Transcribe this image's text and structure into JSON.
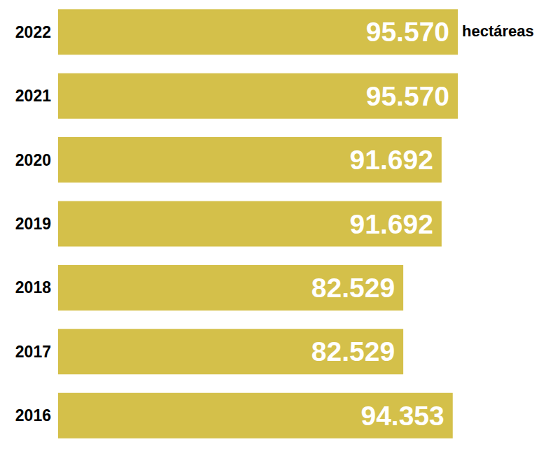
{
  "chart_data": {
    "type": "bar",
    "orientation": "horizontal",
    "categories": [
      "2022",
      "2021",
      "2020",
      "2019",
      "2018",
      "2017",
      "2016"
    ],
    "values": [
      95570,
      95570,
      91692,
      91692,
      82529,
      82529,
      94353
    ],
    "value_labels": [
      "95.570",
      "95.570",
      "91.692",
      "91.692",
      "82.529",
      "82.529",
      "94.353"
    ],
    "annotation": "hectáreas",
    "color": "#d4c04a",
    "xlim": [
      0,
      120000
    ],
    "grid": false,
    "data_labels": true,
    "tick_labels": "y"
  }
}
